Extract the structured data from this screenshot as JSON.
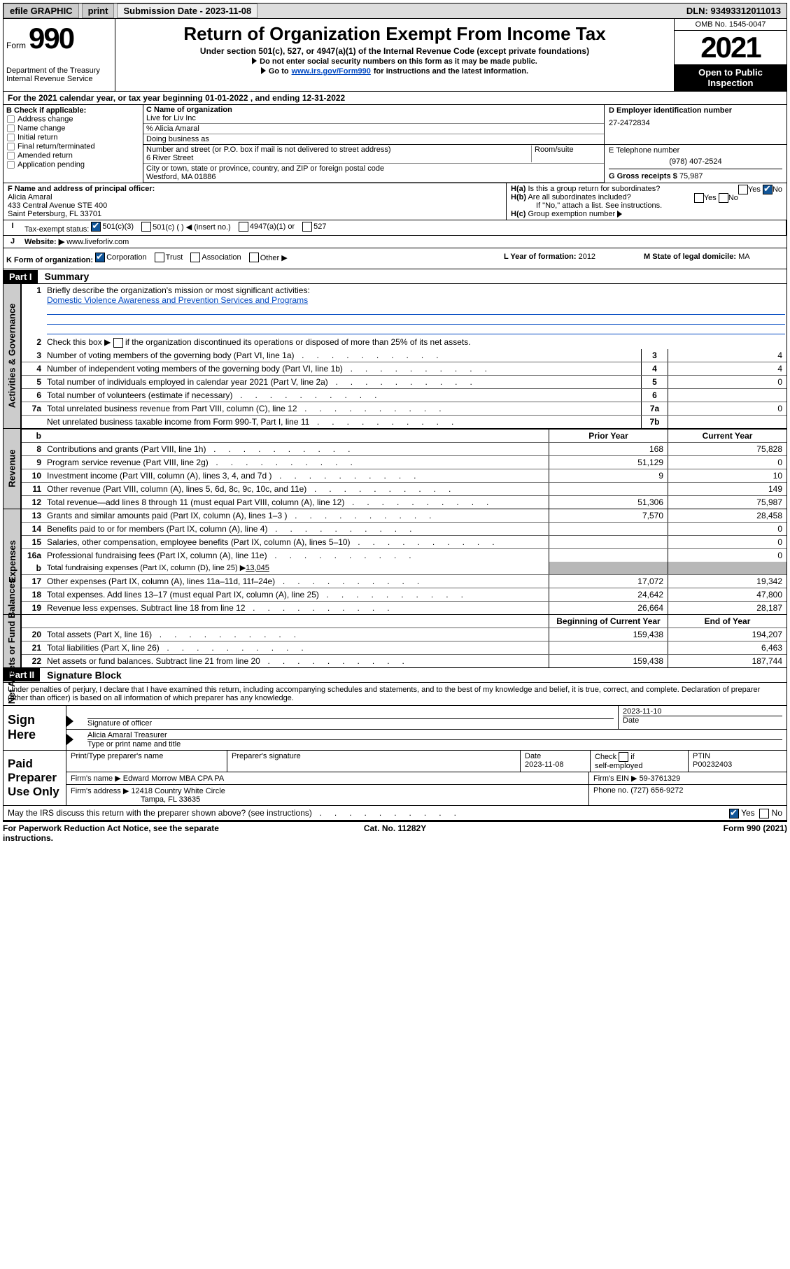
{
  "colors": {
    "link": "#0048c1",
    "checked": "#125699",
    "shaded": "#b8b8b8"
  },
  "topbar": {
    "efile": "efile GRAPHIC",
    "print": "print",
    "sub_label": "Submission Date - 2023-11-08",
    "dln": "DLN: 93493312011013"
  },
  "header": {
    "form_label": "Form",
    "form_no": "990",
    "title": "Return of Organization Exempt From Income Tax",
    "subtitle": "Under section 501(c), 527, or 4947(a)(1) of the Internal Revenue Code (except private foundations)",
    "note1": "Do not enter social security numbers on this form as it may be made public.",
    "note2_pre": "Go to ",
    "note2_link": "www.irs.gov/Form990",
    "note2_post": " for instructions and the latest information.",
    "dept": "Department of the Treasury\nInternal Revenue Service",
    "omb": "OMB No. 1545-0047",
    "year": "2021",
    "open": "Open to Public Inspection"
  },
  "lineA": "For the 2021 calendar year, or tax year beginning 01-01-2022   , and ending 12-31-2022",
  "boxB": {
    "label": "B Check if applicable:",
    "opts": [
      "Address change",
      "Name change",
      "Initial return",
      "Final return/terminated",
      "Amended return",
      "Application pending"
    ]
  },
  "boxC": {
    "label_name": "C Name of organization",
    "name": "Live for Liv Inc",
    "care_of": "% Alicia Amaral",
    "dba_label": "Doing business as",
    "addr_label": "Number and street (or P.O. box if mail is not delivered to street address)",
    "room_label": "Room/suite",
    "street": "6 River Street",
    "city_label": "City or town, state or province, country, and ZIP or foreign postal code",
    "city": "Westford, MA  01886"
  },
  "boxD": {
    "label": "D Employer identification number",
    "val": "27-2472834"
  },
  "boxE": {
    "label": "E Telephone number",
    "val": "(978) 407-2524"
  },
  "boxG": {
    "label": "G Gross receipts $",
    "val": "75,987"
  },
  "boxF": {
    "label": "F  Name and address of principal officer:",
    "name": "Alicia Amaral",
    "addr1": "433 Central Avenue STE 400",
    "addr2": "Saint Petersburg, FL  33701"
  },
  "boxH": {
    "h_a": "Is this a group return for subordinates?",
    "h_a_yes": "Yes",
    "h_a_no": "No",
    "h_b": "Are all subordinates included?",
    "h_b_yes": "Yes",
    "h_b_no": "No",
    "h_note": "If \"No,\" attach a list. See instructions.",
    "h_c": "Group exemption number"
  },
  "rowI": {
    "label": "Tax-exempt status:",
    "opts": [
      "501(c)(3)",
      "501(c) (   ) ◀ (insert no.)",
      "4947(a)(1) or",
      "527"
    ]
  },
  "rowJ": {
    "label": "Website: ▶",
    "val": "www.liveforliv.com"
  },
  "rowK": {
    "k": "K Form of organization:",
    "k_opts": [
      "Corporation",
      "Trust",
      "Association",
      "Other ▶"
    ],
    "l_label": "L Year of formation:",
    "l_val": "2012",
    "m_label": "M State of legal domicile:",
    "m_val": "MA"
  },
  "part1": {
    "hdr": "Part I",
    "title": "Summary"
  },
  "gov": {
    "tab": "Activities & Governance",
    "l1_n": "1",
    "l1": "Briefly describe the organization's mission or most significant activities:",
    "l1_val": "Domestic Violence Awareness and Prevention Services and Programs",
    "l2_n": "2",
    "l2": "Check this box ▶          if the organization discontinued its operations or disposed of more than 25% of its net assets.",
    "rows": [
      {
        "n": "3",
        "t": "Number of voting members of the governing body (Part VI, line 1a)",
        "c1": "3",
        "v": "4"
      },
      {
        "n": "4",
        "t": "Number of independent voting members of the governing body (Part VI, line 1b)",
        "c1": "4",
        "v": "4"
      },
      {
        "n": "5",
        "t": "Total number of individuals employed in calendar year 2021 (Part V, line 2a)",
        "c1": "5",
        "v": "0"
      },
      {
        "n": "6",
        "t": "Total number of volunteers (estimate if necessary)",
        "c1": "6",
        "v": ""
      },
      {
        "n": "7a",
        "t": "Total unrelated business revenue from Part VIII, column (C), line 12",
        "c1": "7a",
        "v": "0"
      },
      {
        "n": "",
        "t": "Net unrelated business taxable income from Form 990-T, Part I, line 11",
        "c1": "7b",
        "v": ""
      }
    ]
  },
  "rev": {
    "tab": "Revenue",
    "hdr_prior": "Prior Year",
    "hdr_curr": "Current Year",
    "rows": [
      {
        "n": "8",
        "t": "Contributions and grants (Part VIII, line 1h)",
        "p": "168",
        "c": "75,828"
      },
      {
        "n": "9",
        "t": "Program service revenue (Part VIII, line 2g)",
        "p": "51,129",
        "c": "0"
      },
      {
        "n": "10",
        "t": "Investment income (Part VIII, column (A), lines 3, 4, and 7d )",
        "p": "9",
        "c": "10"
      },
      {
        "n": "11",
        "t": "Other revenue (Part VIII, column (A), lines 5, 6d, 8c, 9c, 10c, and 11e)",
        "p": "",
        "c": "149"
      },
      {
        "n": "12",
        "t": "Total revenue—add lines 8 through 11 (must equal Part VIII, column (A), line 12)",
        "p": "51,306",
        "c": "75,987"
      }
    ]
  },
  "exp": {
    "tab": "Expenses",
    "rows": [
      {
        "n": "13",
        "t": "Grants and similar amounts paid (Part IX, column (A), lines 1–3 )",
        "p": "7,570",
        "c": "28,458"
      },
      {
        "n": "14",
        "t": "Benefits paid to or for members (Part IX, column (A), line 4)",
        "p": "",
        "c": "0"
      },
      {
        "n": "15",
        "t": "Salaries, other compensation, employee benefits (Part IX, column (A), lines 5–10)",
        "p": "",
        "c": "0"
      },
      {
        "n": "16a",
        "t": "Professional fundraising fees (Part IX, column (A), line 11e)",
        "p": "",
        "c": "0"
      }
    ],
    "l16b_n": "b",
    "l16b": "Total fundraising expenses (Part IX, column (D), line 25) ▶",
    "l16b_v": "13,045",
    "rows2": [
      {
        "n": "17",
        "t": "Other expenses (Part IX, column (A), lines 11a–11d, 11f–24e)",
        "p": "17,072",
        "c": "19,342"
      },
      {
        "n": "18",
        "t": "Total expenses. Add lines 13–17 (must equal Part IX, column (A), line 25)",
        "p": "24,642",
        "c": "47,800"
      },
      {
        "n": "19",
        "t": "Revenue less expenses. Subtract line 18 from line 12",
        "p": "26,664",
        "c": "28,187"
      }
    ]
  },
  "net": {
    "tab": "Net Assets or Fund Balances",
    "hdr_beg": "Beginning of Current Year",
    "hdr_end": "End of Year",
    "rows": [
      {
        "n": "20",
        "t": "Total assets (Part X, line 16)",
        "p": "159,438",
        "c": "194,207"
      },
      {
        "n": "21",
        "t": "Total liabilities (Part X, line 26)",
        "p": "",
        "c": "6,463"
      },
      {
        "n": "22",
        "t": "Net assets or fund balances. Subtract line 21 from line 20",
        "p": "159,438",
        "c": "187,744"
      }
    ]
  },
  "part2": {
    "hdr": "Part II",
    "title": "Signature Block"
  },
  "sig": {
    "decl": "Under penalties of perjury, I declare that I have examined this return, including accompanying schedules and statements, and to the best of my knowledge and belief, it is true, correct, and complete. Declaration of preparer (other than officer) is based on all information of which preparer has any knowledge.",
    "sign_here": "Sign Here",
    "sig_officer": "Signature of officer",
    "date_lbl": "Date",
    "sig_date": "2023-11-10",
    "typed": "Alicia Amaral  Treasurer",
    "typed_lbl": "Type or print name and title",
    "paid": "Paid Preparer Use Only",
    "prep_name_lbl": "Print/Type preparer's name",
    "prep_sig_lbl": "Preparer's signature",
    "prep_date_lbl": "Date",
    "prep_date": "2023-11-08",
    "check_if": "Check          if self-employed",
    "ptin_lbl": "PTIN",
    "ptin": "P00232403",
    "firm_name_lbl": "Firm's name    ▶",
    "firm_name": "Edward Morrow MBA CPA PA",
    "firm_ein_lbl": "Firm's EIN ▶",
    "firm_ein": "59-3761329",
    "firm_addr_lbl": "Firm's address ▶",
    "firm_addr1": "12418 Country White Circle",
    "firm_addr2": "Tampa, FL  33635",
    "phone_lbl": "Phone no.",
    "phone": "(727) 656-9272",
    "discuss": "May the IRS discuss this return with the preparer shown above? (see instructions)",
    "discuss_yes": "Yes",
    "discuss_no": "No"
  },
  "footer": {
    "l": "For Paperwork Reduction Act Notice, see the separate instructions.",
    "m": "Cat. No. 11282Y",
    "r": "Form 990 (2021)"
  }
}
